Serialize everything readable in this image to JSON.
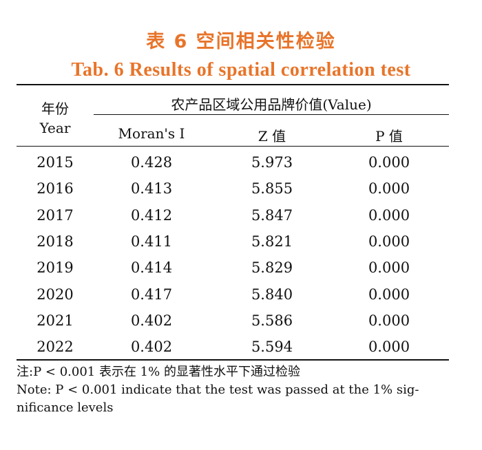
{
  "title": {
    "cn": "表 6   空间相关性检验",
    "en": "Tab. 6    Results of spatial correlation test"
  },
  "table": {
    "year_header_cn": "年份",
    "year_header_en": "Year",
    "group_header": "农产品区域公用品牌价值(Value)",
    "col_moran": "Moran's I",
    "col_z": "Z 值",
    "col_p": "P 值",
    "rows": [
      {
        "year": "2015",
        "moran": "0.428",
        "z": "5.973",
        "p": "0.000"
      },
      {
        "year": "2016",
        "moran": "0.413",
        "z": "5.855",
        "p": "0.000"
      },
      {
        "year": "2017",
        "moran": "0.412",
        "z": "5.847",
        "p": "0.000"
      },
      {
        "year": "2018",
        "moran": "0.411",
        "z": "5.821",
        "p": "0.000"
      },
      {
        "year": "2019",
        "moran": "0.414",
        "z": "5.829",
        "p": "0.000"
      },
      {
        "year": "2020",
        "moran": "0.417",
        "z": "5.840",
        "p": "0.000"
      },
      {
        "year": "2021",
        "moran": "0.402",
        "z": "5.586",
        "p": "0.000"
      },
      {
        "year": "2022",
        "moran": "0.402",
        "z": "5.594",
        "p": "0.000"
      }
    ]
  },
  "notes": {
    "cn": "注:P < 0.001 表示在 1% 的显著性水平下通过检验",
    "en_line1": "Note: P < 0.001 indicate that the test was passed at the 1% sig-",
    "en_line2": "nificance levels"
  },
  "colors": {
    "title": "#e8742a",
    "text": "#111111"
  }
}
